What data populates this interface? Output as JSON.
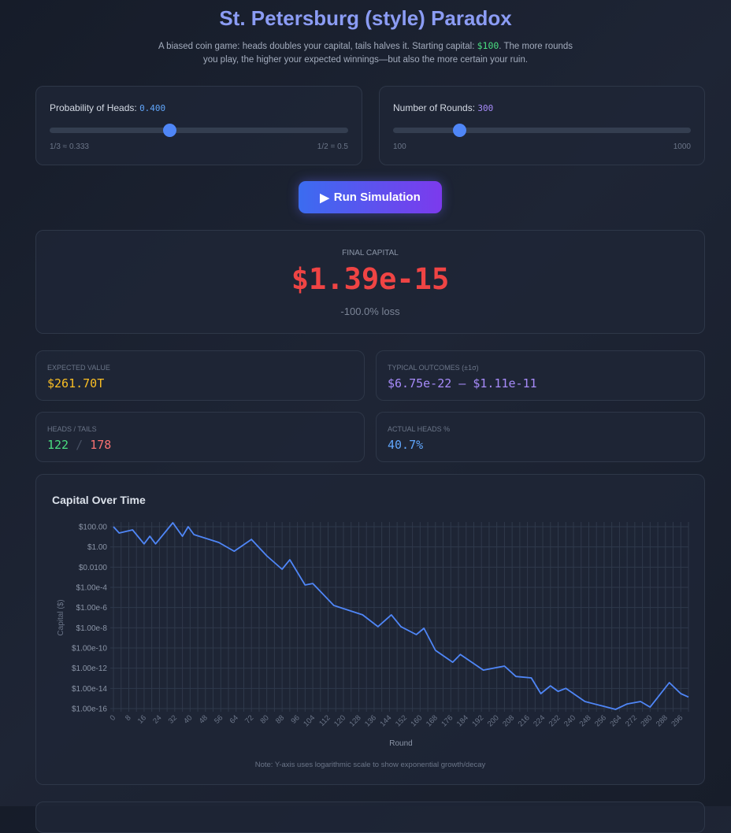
{
  "header": {
    "title": "St. Petersburg (style) Paradox",
    "subtitle_pre": "A biased coin game: heads doubles your capital, tails halves it. Starting capital: ",
    "subtitle_cap": "$100",
    "subtitle_post": ". The more rounds you play, the higher your expected winnings—but also the more certain your ruin."
  },
  "controls": {
    "prob": {
      "label": "Probability of Heads: ",
      "value": "0.400",
      "min_label": "1/3 ≈ 0.333",
      "max_label": "1/2 = 0.5",
      "fraction": 0.4
    },
    "rounds": {
      "label": "Number of Rounds: ",
      "value": "300",
      "min_label": "100",
      "max_label": "1000",
      "fraction": 0.222
    },
    "run_label": "Run Simulation",
    "run_icon": "play-icon"
  },
  "result": {
    "label": "FINAL CAPITAL",
    "value": "$1.39e-15",
    "change": "-100.0% loss",
    "color": "#ef4444"
  },
  "stats": {
    "expected": {
      "label": "EXPECTED VALUE",
      "value": "$261.70T",
      "color": "#fbbf24"
    },
    "typical": {
      "label": "TYPICAL OUTCOMES (±1σ)",
      "value": "$6.75e-22 – $1.11e-11",
      "color": "#a78bfa"
    },
    "ht": {
      "label": "HEADS / TAILS",
      "heads": "122",
      "sep": "/",
      "tails": "178"
    },
    "actual": {
      "label": "ACTUAL HEADS %",
      "value": "40.7%",
      "color": "#60a5fa"
    }
  },
  "chart_data": {
    "type": "line",
    "title": "Capital Over Time",
    "xlabel": "Round",
    "ylabel": "Capital ($)",
    "yscale": "log",
    "xlim": [
      0,
      300
    ],
    "ylim": [
      1e-16,
      100
    ],
    "grid": true,
    "color": "#4f86f7",
    "yticks": [
      "$100.00",
      "$1.00",
      "$0.0100",
      "$1.00e-4",
      "$1.00e-6",
      "$1.00e-8",
      "$1.00e-10",
      "$1.00e-12",
      "$1.00e-14",
      "$1.00e-16"
    ],
    "xticks": [
      "0",
      "8",
      "16",
      "24",
      "32",
      "40",
      "48",
      "56",
      "64",
      "72",
      "80",
      "88",
      "96",
      "104",
      "112",
      "120",
      "128",
      "136",
      "144",
      "152",
      "160",
      "168",
      "176",
      "184",
      "192",
      "200",
      "208",
      "216",
      "224",
      "232",
      "240",
      "248",
      "256",
      "264",
      "272",
      "280",
      "288",
      "296"
    ],
    "x": [
      0,
      3,
      10,
      16,
      19,
      22,
      31,
      36,
      39,
      42,
      55,
      63,
      72,
      80,
      88,
      92,
      100,
      104,
      115,
      130,
      138,
      145,
      150,
      158,
      162,
      168,
      177,
      181,
      193,
      204,
      210,
      218,
      223,
      228,
      232,
      236,
      246,
      262,
      268,
      275,
      280,
      290,
      296,
      300
    ],
    "y": [
      100,
      24,
      49,
      2,
      11.5,
      2,
      245,
      11.5,
      100,
      16.6,
      2.75,
      0.38,
      5.6,
      0.13,
      0.0062,
      0.054,
      0.00017,
      0.00024,
      1.6e-06,
      1.9e-07,
      1.3e-08,
      1.9e-07,
      1.3e-08,
      2.1e-09,
      8.9e-09,
      5.8e-11,
      3.9e-12,
      2.3e-11,
      6.5e-13,
      1.6e-12,
      1.5e-13,
      1.1e-13,
      3e-15,
      1.8e-14,
      5.1e-15,
      1e-14,
      5e-16,
      8.3e-17,
      2.9e-16,
      5e-16,
      1.4e-16,
      3.7e-14,
      3e-15,
      1.39e-15
    ],
    "note": "Note: Y-axis uses logarithmic scale to show exponential growth/decay"
  }
}
